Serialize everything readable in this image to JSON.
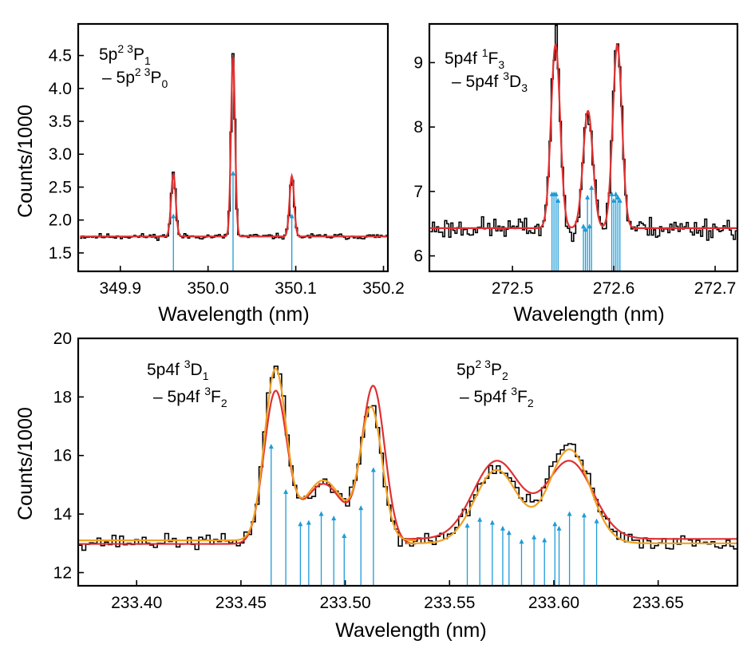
{
  "chart_data": [
    {
      "id": "p1",
      "type": "line",
      "xlabel": "Wavelength (nm)",
      "ylabel": "Counts/1000",
      "xlim": [
        349.852,
        350.205
      ],
      "ylim": [
        1.22,
        4.98
      ],
      "xticks": [
        349.9,
        350.0,
        350.1,
        350.2
      ],
      "xtick_labels": [
        "349.9",
        "350.0",
        "350.1",
        "350.2"
      ],
      "yticks": [
        1.5,
        2.0,
        2.5,
        3.0,
        3.5,
        4.0,
        4.5
      ],
      "ytick_labels": [
        "1.5",
        "2.0",
        "2.5",
        "3.0",
        "3.5",
        "4.0",
        "4.5"
      ],
      "annotation": {
        "line1": {
          "base": "5p",
          "s1": "2",
          "s2": "3",
          "rest": "P",
          "sub": "1"
        },
        "line2": {
          "dash": "– ",
          "base": "5p",
          "s1": "2",
          "s2": "3",
          "rest": "P",
          "sub": "0"
        }
      },
      "series": [
        {
          "name": "data",
          "color": "#000000",
          "baseline": 1.75,
          "noise": 0.03,
          "noise_seed": 11,
          "peaks": [
            [
              349.9605,
              0.99,
              0.0025
            ],
            [
              350.0285,
              2.78,
              0.0022
            ],
            [
              350.0955,
              0.93,
              0.0025
            ]
          ],
          "x_range": [
            349.854,
            350.205
          ],
          "n_bins": 160
        },
        {
          "name": "fit",
          "color": "#e03030",
          "baseline": 1.75,
          "peaks": [
            [
              349.9605,
              0.95,
              0.0026
            ],
            [
              350.0285,
              2.75,
              0.0023
            ],
            [
              350.0955,
              0.92,
              0.0026
            ]
          ],
          "x_range": [
            349.854,
            350.205
          ]
        }
      ],
      "markers": {
        "color": "#1e9bd7",
        "items": [
          [
            349.9605,
            2.1
          ],
          [
            350.0285,
            2.75
          ],
          [
            350.0955,
            2.1
          ]
        ]
      }
    },
    {
      "id": "p2",
      "type": "line",
      "xlabel": "Wavelength (nm)",
      "ylabel": "",
      "xlim": [
        272.418,
        272.722
      ],
      "ylim": [
        5.76,
        9.6
      ],
      "xticks": [
        272.5,
        272.6,
        272.7
      ],
      "xtick_labels": [
        "272.5",
        "272.6",
        "272.7"
      ],
      "yticks": [
        6,
        7,
        8,
        9
      ],
      "ytick_labels": [
        "6",
        "7",
        "8",
        "9"
      ],
      "annotation": {
        "line1": {
          "base": "5p4f ",
          "s1": "1",
          "rest": "F",
          "sub": "3"
        },
        "line2": {
          "dash": "– ",
          "base": "5p4f ",
          "s1": "3",
          "rest": "D",
          "sub": "3"
        }
      },
      "series": [
        {
          "name": "data",
          "color": "#000000",
          "baseline": 6.43,
          "noise": 0.12,
          "noise_seed": 23,
          "peaks": [
            [
              272.5425,
              2.9,
              0.0045
            ],
            [
              272.5745,
              1.85,
              0.0048
            ],
            [
              272.6035,
              2.95,
              0.0045
            ]
          ],
          "x_range": [
            272.419,
            272.722
          ],
          "n_bins": 150
        },
        {
          "name": "fit",
          "color": "#e03030",
          "baseline": 6.43,
          "peaks": [
            [
              272.5425,
              2.85,
              0.0045
            ],
            [
              272.5745,
              1.82,
              0.0048
            ],
            [
              272.6035,
              2.85,
              0.0045
            ]
          ],
          "x_range": [
            272.419,
            272.722
          ]
        }
      ],
      "markers": {
        "color": "#1e9bd7",
        "items": [
          [
            272.539,
            7.0
          ],
          [
            272.541,
            7.0
          ],
          [
            272.543,
            7.0
          ],
          [
            272.545,
            6.9
          ],
          [
            272.57,
            6.5
          ],
          [
            272.572,
            6.45
          ],
          [
            272.574,
            6.95
          ],
          [
            272.576,
            6.5
          ],
          [
            272.578,
            7.1
          ],
          [
            272.598,
            7.0
          ],
          [
            272.6,
            6.9
          ],
          [
            272.602,
            7.0
          ],
          [
            272.604,
            6.95
          ],
          [
            272.606,
            6.9
          ]
        ]
      }
    },
    {
      "id": "p3",
      "type": "line",
      "xlabel": "Wavelength (nm)",
      "ylabel": "Counts/1000",
      "xlim": [
        233.372,
        233.688
      ],
      "ylim": [
        11.55,
        20.0
      ],
      "xticks": [
        233.4,
        233.45,
        233.5,
        233.55,
        233.6,
        233.65
      ],
      "xtick_labels": [
        "233.40",
        "233.45",
        "233.50",
        "233.55",
        "233.60",
        "233.65"
      ],
      "yticks": [
        12,
        14,
        16,
        18,
        20
      ],
      "ytick_labels": [
        "12",
        "14",
        "16",
        "18",
        "20"
      ],
      "annotations": [
        {
          "line1": {
            "base": "5p4f ",
            "s1": "3",
            "rest": "D",
            "sub": "1"
          },
          "line2": {
            "dash": "– ",
            "base": "5p4f ",
            "s1": "3",
            "rest": "F",
            "sub": "2"
          }
        },
        {
          "line1": {
            "base": "5p",
            "s1": "2",
            "s2": "3",
            "rest": "P",
            "sub": "2"
          },
          "line2": {
            "dash": "– ",
            "base": "5p4f ",
            "s1": "3",
            "rest": "F",
            "sub": "2"
          }
        }
      ],
      "series": [
        {
          "name": "data",
          "color": "#000000",
          "baseline": 13.05,
          "noise": 0.18,
          "noise_seed": 37,
          "peaks": [
            [
              233.4665,
              6.0,
              0.0052
            ],
            [
              233.4895,
              2.0,
              0.0095
            ],
            [
              233.5125,
              4.6,
              0.0052
            ],
            [
              233.5725,
              2.5,
              0.0108
            ],
            [
              233.6075,
              3.3,
              0.0098
            ]
          ],
          "x_range": [
            233.372,
            233.688
          ],
          "n_bins": 175
        },
        {
          "name": "fit-1",
          "color": "#e03030",
          "baseline": 12.98,
          "peaks": [
            [
              233.4665,
              5.1,
              0.0055
            ],
            [
              233.4895,
              2.05,
              0.0098
            ],
            [
              233.5135,
              5.3,
              0.0055
            ]
          ],
          "x_range": [
            233.372,
            233.534
          ]
        },
        {
          "name": "fit-2",
          "color": "#e03030",
          "baseline": 13.15,
          "peaks": [
            [
              233.5725,
              2.65,
              0.0112
            ],
            [
              233.6075,
              2.65,
              0.0112
            ]
          ],
          "x_range": [
            233.529,
            233.688
          ]
        },
        {
          "name": "fit-3",
          "color": "#f0a020",
          "baseline": 13.1,
          "peaks": [
            [
              233.4665,
              5.75,
              0.0052
            ],
            [
              233.4895,
              2.05,
              0.0096
            ],
            [
              233.5125,
              4.45,
              0.0052
            ]
          ],
          "x_range": [
            233.372,
            233.534
          ]
        },
        {
          "name": "fit-4",
          "color": "#f0a020",
          "baseline": 13.0,
          "peaks": [
            [
              233.5725,
              2.5,
              0.0104
            ],
            [
              233.6075,
              3.2,
              0.0098
            ]
          ],
          "x_range": [
            233.529,
            233.688
          ]
        }
      ],
      "markers": {
        "color": "#1e9bd7",
        "items": [
          [
            233.4645,
            16.4
          ],
          [
            233.4715,
            14.85
          ],
          [
            233.4785,
            13.75
          ],
          [
            233.4825,
            13.8
          ],
          [
            233.4885,
            14.1
          ],
          [
            233.4945,
            13.95
          ],
          [
            233.4995,
            13.35
          ],
          [
            233.5075,
            14.3
          ],
          [
            233.5135,
            15.6
          ],
          [
            233.5585,
            13.7
          ],
          [
            233.5645,
            13.9
          ],
          [
            233.5705,
            13.8
          ],
          [
            233.5755,
            13.6
          ],
          [
            233.5785,
            13.45
          ],
          [
            233.5845,
            13.15
          ],
          [
            233.5905,
            13.3
          ],
          [
            233.5955,
            13.2
          ],
          [
            233.6005,
            13.75
          ],
          [
            233.6025,
            13.6
          ],
          [
            233.6075,
            14.1
          ],
          [
            233.6145,
            14.05
          ],
          [
            233.6205,
            13.85
          ]
        ]
      }
    }
  ]
}
